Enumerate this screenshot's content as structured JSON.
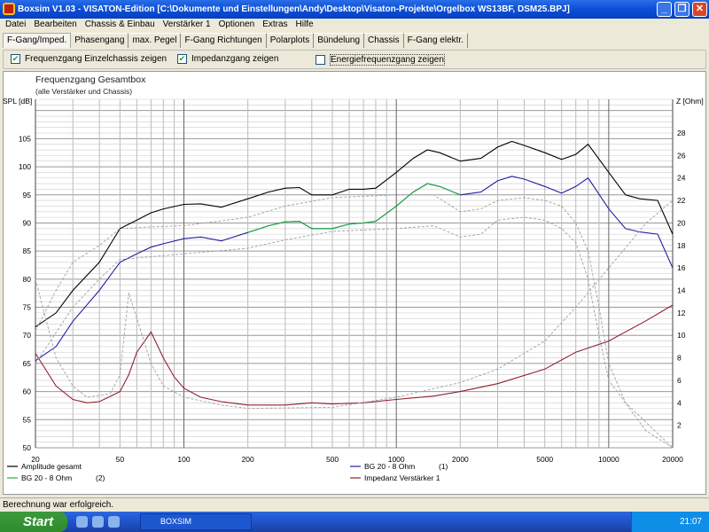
{
  "window": {
    "title": "Boxsim V1.03 - VISATON-Edition [C:\\Dokumente und Einstellungen\\Andy\\Desktop\\Visaton-Projekte\\Orgelbox WS13BF, DSM25.BPJ]"
  },
  "menu": [
    "Datei",
    "Bearbeiten",
    "Chassis & Einbau",
    "Verstärker 1",
    "Optionen",
    "Extras",
    "Hilfe"
  ],
  "tabs": [
    "F-Gang/Imped.",
    "Phasengang",
    "max. Pegel",
    "F-Gang Richtungen",
    "Polarplots",
    "Bündelung",
    "Chassis",
    "F-Gang elektr."
  ],
  "active_tab": "F-Gang/Imped.",
  "options": [
    {
      "label": "Frequenzgang Einzelchassis zeigen",
      "checked": true
    },
    {
      "label": "Impedanzgang zeigen",
      "checked": true
    },
    {
      "label": "Energiefrequenzgang zeigen",
      "checked": false
    }
  ],
  "chart_data": {
    "type": "line",
    "title": "Frequenzgang Gesamtbox",
    "subtitle": "(alle Verstärker und Chassis)",
    "ylabel": "SPL [dB]",
    "y2label": "Z [Ohm]",
    "xscale": "log",
    "xlim": [
      20,
      20000
    ],
    "ylim": [
      50,
      112
    ],
    "y2lim": [
      0,
      31
    ],
    "grid": true,
    "xticks": [
      20,
      50,
      100,
      200,
      500,
      1000,
      2000,
      5000,
      10000,
      20000
    ],
    "yticks": [
      50,
      55,
      60,
      65,
      70,
      75,
      80,
      85,
      90,
      95,
      100,
      105
    ],
    "y2ticks": [
      2,
      4,
      6,
      8,
      10,
      12,
      14,
      16,
      18,
      20,
      22,
      24,
      26,
      28
    ],
    "legend_position": "bottom",
    "series": [
      {
        "name": "Amplitude gesamt",
        "color": "#000000",
        "axis": "left",
        "style": "solid",
        "x": [
          20,
          25,
          30,
          40,
          50,
          60,
          70,
          80,
          100,
          120,
          150,
          200,
          250,
          300,
          350,
          400,
          500,
          600,
          700,
          800,
          1000,
          1200,
          1400,
          1600,
          2000,
          2500,
          3000,
          3500,
          4000,
          5000,
          6000,
          7000,
          8000,
          10000,
          12000,
          14000,
          17000,
          20000
        ],
        "y": [
          71.5,
          74,
          78,
          83,
          89,
          90.5,
          91.8,
          92.5,
          93.3,
          93.4,
          92.8,
          94.3,
          95.5,
          96.2,
          96.3,
          95,
          95,
          96,
          96,
          96.2,
          99,
          101.5,
          103,
          102.5,
          101,
          101.5,
          103.5,
          104.5,
          103.8,
          102.5,
          101.3,
          102.2,
          104,
          99,
          95,
          94.3,
          94,
          88
        ]
      },
      {
        "name": "BG 20 - 8 Ohm",
        "tag": "(1)",
        "color": "#2020a0",
        "axis": "left",
        "style": "solid",
        "x": [
          20,
          25,
          30,
          40,
          50,
          60,
          70,
          80,
          100,
          120,
          150,
          200,
          250,
          300,
          350,
          400,
          500,
          600,
          700,
          800,
          1000,
          1200,
          1400,
          1600,
          2000,
          2500,
          3000,
          3500,
          4000,
          5000,
          6000,
          7000,
          8000,
          10000,
          12000,
          14000,
          17000,
          20000
        ],
        "y": [
          65.5,
          68,
          72.5,
          78,
          83,
          84.5,
          85.7,
          86.3,
          87.2,
          87.5,
          86.8,
          88.3,
          89.5,
          90.2,
          90.3,
          89,
          89,
          89.8,
          90,
          90.3,
          93,
          95.5,
          97,
          96.5,
          95,
          95.5,
          97.5,
          98.3,
          97.8,
          96.5,
          95.3,
          96.5,
          98,
          92.5,
          89,
          88.4,
          88,
          82
        ]
      },
      {
        "name": "BG 20 - 8 Ohm",
        "tag": "(2)",
        "color": "#20b040",
        "axis": "left",
        "style": "solid",
        "x": [
          200,
          250,
          300,
          350,
          400,
          500,
          600,
          700,
          800,
          1000,
          1200,
          1400,
          1600,
          2000
        ],
        "y": [
          88.3,
          89.5,
          90.2,
          90.3,
          89,
          89,
          89.8,
          90,
          90.3,
          93,
          95.5,
          97,
          96.5,
          95
        ]
      },
      {
        "name": "Impedanz Verstärker 1",
        "color": "#902030",
        "axis": "right",
        "style": "solid",
        "x": [
          20,
          25,
          30,
          35,
          40,
          50,
          55,
          60,
          70,
          80,
          90,
          100,
          120,
          150,
          200,
          300,
          400,
          500,
          700,
          1000,
          1500,
          2000,
          3000,
          5000,
          7000,
          10000,
          15000,
          20000
        ],
        "y": [
          8.4,
          5.5,
          4.3,
          4.0,
          4.1,
          5.0,
          6.5,
          8.5,
          10.3,
          8.0,
          6.3,
          5.3,
          4.5,
          4.1,
          3.8,
          3.8,
          4.0,
          3.9,
          4.0,
          4.3,
          4.6,
          5.0,
          5.7,
          7.0,
          8.5,
          9.5,
          11.3,
          12.7
        ]
      },
      {
        "color": "#a0a0a0",
        "axis": "left",
        "style": "dashed",
        "x": [
          20,
          25,
          30,
          40,
          50,
          70,
          100,
          200,
          300,
          500,
          1000,
          1500,
          2000,
          2500,
          3000,
          4000,
          5000,
          6000,
          7000,
          8000,
          9000,
          10000,
          12000,
          20000
        ],
        "y": [
          70.8,
          78,
          83,
          86,
          89,
          89.3,
          89.5,
          91,
          93,
          94.5,
          95,
          95,
          92,
          92.5,
          94,
          94.5,
          94,
          93,
          90,
          85,
          75,
          65,
          58,
          50
        ]
      },
      {
        "color": "#a0a0a0",
        "axis": "left",
        "style": "dashed",
        "x": [
          20,
          30,
          40,
          50,
          100,
          200,
          300,
          500,
          1000,
          1500,
          2000,
          2500,
          3000,
          4000,
          5000,
          6000,
          7000,
          8000,
          9000,
          10000,
          15000,
          20000
        ],
        "y": [
          65,
          75,
          80,
          83.5,
          84.5,
          85.5,
          87,
          88.5,
          89,
          89.5,
          87.5,
          88,
          90.5,
          91,
          90.5,
          89,
          86.5,
          80,
          70,
          62,
          53,
          50
        ]
      },
      {
        "color": "#a0a0a0",
        "axis": "right",
        "style": "dashed",
        "x": [
          20,
          25,
          30,
          35,
          45,
          50,
          55,
          60,
          70,
          80,
          100,
          150,
          200,
          500,
          1000,
          2000,
          3000,
          5000,
          7000,
          10000,
          15000,
          20000
        ],
        "y": [
          15,
          8,
          5.5,
          4.5,
          4.8,
          6.5,
          13.8,
          11.5,
          7.5,
          5.5,
          4.5,
          3.8,
          3.5,
          3.6,
          4.5,
          5.8,
          7,
          9.5,
          12.5,
          16,
          20,
          22
        ]
      }
    ]
  },
  "status": "Berechnung war erfolgreich.",
  "taskbar": {
    "start": "Start",
    "task": "BOXSIM",
    "clock": "21:07"
  }
}
